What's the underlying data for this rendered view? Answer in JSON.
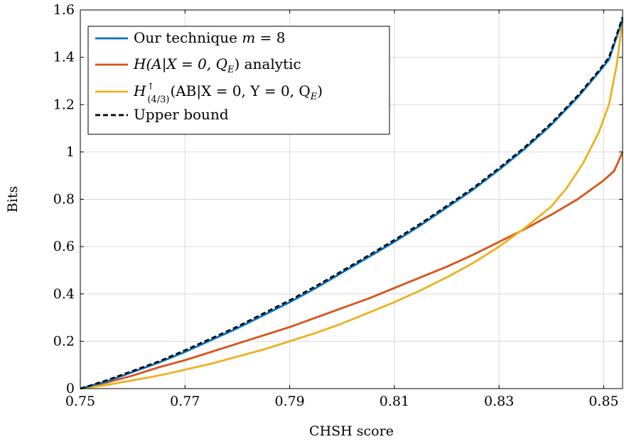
{
  "chart_data": {
    "type": "line",
    "xlabel": "CHSH score",
    "ylabel": "Bits",
    "xlim": [
      0.75,
      0.8536
    ],
    "ylim": [
      0,
      1.6
    ],
    "x_ticks": [
      0.75,
      0.77,
      0.79,
      0.81,
      0.83,
      0.85
    ],
    "y_ticks": [
      0,
      0.2,
      0.4,
      0.6,
      0.8,
      1,
      1.2,
      1.4,
      1.6
    ],
    "grid": true,
    "legend_position": "top-left",
    "colors": {
      "blue": "#0072bd",
      "orange": "#d95319",
      "yellow": "#edb120",
      "black": "#000000"
    },
    "series": [
      {
        "name": "Our technique m = 8",
        "color": "#0072bd",
        "style": "solid",
        "x": [
          0.75,
          0.755,
          0.76,
          0.765,
          0.77,
          0.775,
          0.78,
          0.785,
          0.79,
          0.795,
          0.8,
          0.805,
          0.81,
          0.815,
          0.82,
          0.825,
          0.83,
          0.835,
          0.84,
          0.845,
          0.849,
          0.851,
          0.853,
          0.8536
        ],
        "y": [
          0,
          0.03,
          0.07,
          0.11,
          0.155,
          0.205,
          0.255,
          0.31,
          0.365,
          0.425,
          0.49,
          0.555,
          0.62,
          0.69,
          0.765,
          0.84,
          0.925,
          1.015,
          1.115,
          1.23,
          1.335,
          1.39,
          1.52,
          1.56
        ]
      },
      {
        "name": "H(A|X = 0, Q_E) analytic",
        "color": "#d95319",
        "style": "solid",
        "x": [
          0.75,
          0.755,
          0.76,
          0.765,
          0.77,
          0.775,
          0.78,
          0.785,
          0.79,
          0.795,
          0.8,
          0.805,
          0.81,
          0.815,
          0.82,
          0.825,
          0.83,
          0.835,
          0.84,
          0.845,
          0.85,
          0.852,
          0.8536
        ],
        "y": [
          0,
          0.025,
          0.055,
          0.09,
          0.12,
          0.155,
          0.19,
          0.225,
          0.26,
          0.3,
          0.34,
          0.38,
          0.425,
          0.47,
          0.515,
          0.565,
          0.62,
          0.675,
          0.735,
          0.8,
          0.88,
          0.92,
          1.0
        ]
      },
      {
        "name": "H↑(4/3)(AB|X = 0, Y = 0, Q_E)",
        "color": "#edb120",
        "style": "solid",
        "x": [
          0.75,
          0.755,
          0.76,
          0.765,
          0.77,
          0.775,
          0.78,
          0.785,
          0.79,
          0.795,
          0.8,
          0.805,
          0.81,
          0.815,
          0.82,
          0.825,
          0.83,
          0.835,
          0.84,
          0.843,
          0.846,
          0.849,
          0.851,
          0.8525,
          0.8536
        ],
        "y": [
          0,
          0.015,
          0.035,
          0.055,
          0.08,
          0.105,
          0.135,
          0.165,
          0.2,
          0.235,
          0.275,
          0.32,
          0.365,
          0.415,
          0.47,
          0.53,
          0.6,
          0.68,
          0.77,
          0.85,
          0.95,
          1.08,
          1.2,
          1.37,
          1.56
        ]
      },
      {
        "name": "Upper bound",
        "color": "#000000",
        "style": "dashed",
        "x": [
          0.75,
          0.755,
          0.76,
          0.765,
          0.77,
          0.775,
          0.78,
          0.785,
          0.79,
          0.795,
          0.8,
          0.805,
          0.81,
          0.815,
          0.82,
          0.825,
          0.83,
          0.835,
          0.84,
          0.845,
          0.849,
          0.851,
          0.853,
          0.8536
        ],
        "y": [
          0,
          0.035,
          0.075,
          0.115,
          0.162,
          0.212,
          0.262,
          0.318,
          0.373,
          0.433,
          0.497,
          0.562,
          0.628,
          0.697,
          0.772,
          0.847,
          0.932,
          1.022,
          1.122,
          1.237,
          1.342,
          1.4,
          1.53,
          1.57
        ]
      }
    ],
    "legend": [
      {
        "prefix": "Our technique ",
        "math": "m",
        "suffix": " = 8"
      },
      {
        "prefix": "",
        "math": "H(A|X = 0, Q",
        "sub": "E",
        "suffix": ") analytic"
      },
      {
        "prefix": "",
        "math": "H",
        "sup": "↑",
        "sub": "(4/3)",
        "suffix": "(AB|X = 0, Y = 0, Q",
        "sub2": "E",
        "suffix2": ")"
      },
      {
        "prefix": "Upper bound",
        "math": "",
        "suffix": ""
      }
    ]
  }
}
